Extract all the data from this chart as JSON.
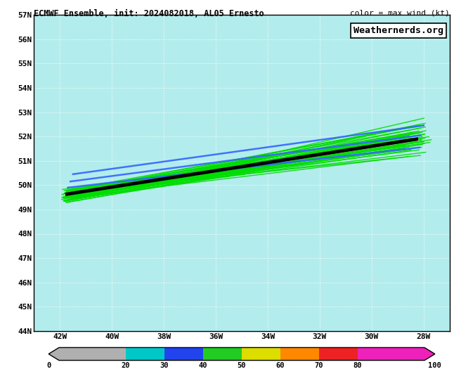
{
  "title": "ECMWF Ensemble, init: 2024082018, AL05 Ernesto",
  "color_label": "color = max wind (kt)",
  "watermark": "Weathernerds.org",
  "bg_color": "#b3ecec",
  "lon_min": -43,
  "lon_max": -27,
  "lat_min": 44,
  "lat_max": 57,
  "lon_ticks": [
    -42,
    -40,
    -38,
    -36,
    -34,
    -32,
    -30,
    -28
  ],
  "lat_ticks": [
    44,
    45,
    46,
    47,
    48,
    49,
    50,
    51,
    52,
    53,
    54,
    55,
    56,
    57
  ],
  "n_ensemble": 51,
  "ensemble_color": "#00dd00",
  "ensemble_lw": 1.0,
  "mean_color": "#000000",
  "mean_lw": 3.5,
  "white_track_color": "#ffffff",
  "white_track_lw": 1.5,
  "blue_color": "#3366ff",
  "blue_lw": 1.8,
  "cb_colors": [
    "#b0b0b0",
    "#00c8c8",
    "#2244ee",
    "#22cc22",
    "#dddd00",
    "#ff8800",
    "#ee2222",
    "#ee22bb"
  ],
  "cb_bounds": [
    0,
    20,
    30,
    40,
    50,
    60,
    70,
    80,
    100
  ],
  "cb_labels": [
    "0",
    "20",
    "30",
    "40",
    "50",
    "60",
    "70",
    "80",
    "100"
  ]
}
